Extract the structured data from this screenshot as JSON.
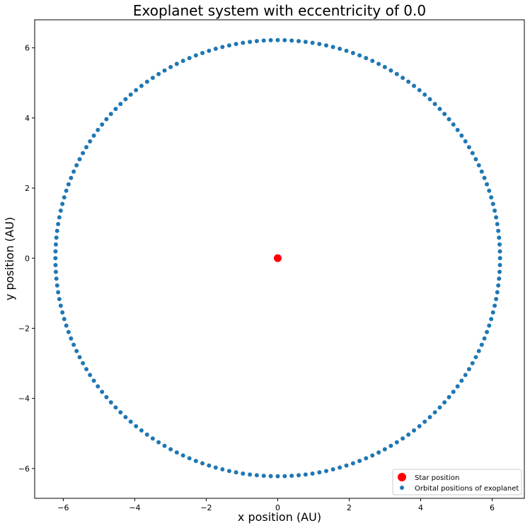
{
  "chart_data": {
    "type": "scatter",
    "title": "Exoplanet system with eccentricity of 0.0",
    "xlabel": "x position (AU)",
    "ylabel": "y position (AU)",
    "xlim": [
      -6.8,
      6.9
    ],
    "ylim": [
      -6.85,
      6.8
    ],
    "xticks": [
      -6,
      -4,
      -2,
      0,
      2,
      4,
      6
    ],
    "yticks": [
      -6,
      -4,
      -2,
      0,
      2,
      4,
      6
    ],
    "tick_labels_x": [
      "−6",
      "−4",
      "−2",
      "0",
      "2",
      "4",
      "6"
    ],
    "tick_labels_y": [
      "−6",
      "−4",
      "−2",
      "0",
      "2",
      "4",
      "6"
    ],
    "grid": false,
    "legend_position": "lower-right",
    "series": [
      {
        "name": "Star position",
        "color": "#ff0000",
        "marker": "large-circle",
        "points": [
          [
            0,
            0
          ]
        ]
      },
      {
        "name": "Orbital positions of exoplanet",
        "color": "#1f77b4",
        "marker": "circle",
        "orbit": {
          "center": [
            0,
            0
          ],
          "semi_major_axis": 6.22,
          "eccentricity": 0.0,
          "num_points": 200
        }
      }
    ]
  }
}
